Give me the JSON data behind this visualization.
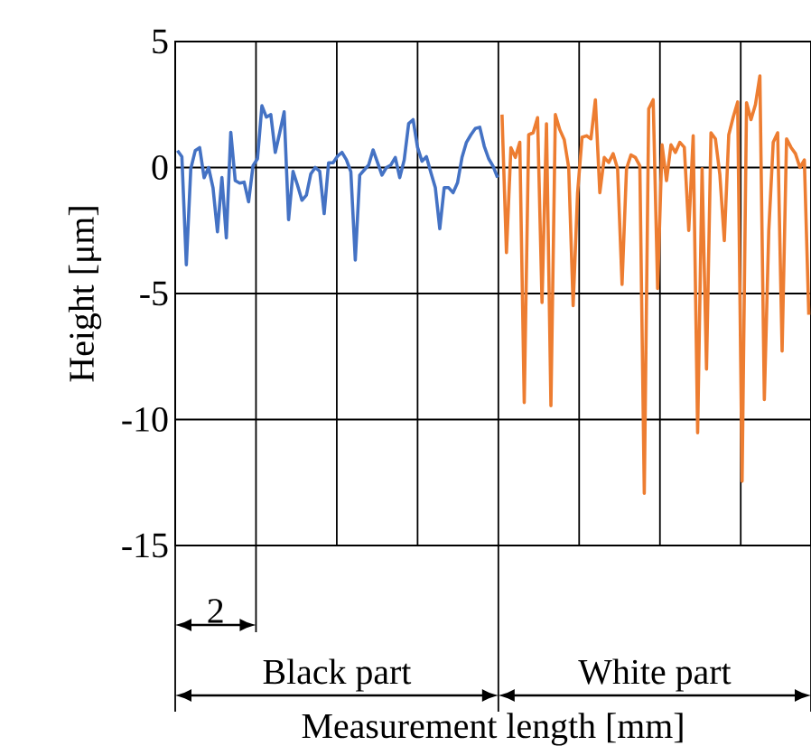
{
  "chart_data": {
    "type": "line",
    "xlabel": "Measurement length [mm]",
    "ylabel": "Height [μm]",
    "annotations": [
      "2",
      "Black part",
      "White part"
    ],
    "categories": [
      null,
      null,
      null,
      null,
      null,
      null,
      null,
      null,
      null,
      null,
      null,
      null,
      null,
      null,
      null,
      null,
      null,
      null,
      null,
      null,
      null,
      null,
      null,
      null,
      null,
      null,
      null,
      null,
      null,
      null,
      null,
      null,
      null,
      null,
      null,
      null,
      null,
      null,
      null,
      null,
      null,
      null,
      null,
      null,
      null,
      null,
      null,
      null,
      null,
      null,
      null,
      null,
      null,
      null,
      null,
      null,
      null,
      null,
      null,
      null,
      null,
      null,
      null,
      null,
      null,
      null,
      null,
      null,
      null,
      null,
      null,
      null,
      null,
      null,
      null,
      null,
      null,
      null,
      null,
      null,
      null,
      null,
      null,
      null,
      null,
      null,
      null,
      null,
      null,
      null,
      null,
      null,
      null,
      null,
      null,
      null,
      null,
      null,
      null,
      null,
      null,
      null,
      null,
      null,
      null,
      null,
      null,
      null,
      null,
      null,
      null,
      null,
      null,
      null,
      null,
      null,
      null,
      null,
      null,
      null,
      null,
      null,
      null,
      null,
      null,
      null,
      null,
      null,
      null,
      null,
      null,
      null,
      null,
      null,
      null,
      null,
      null,
      null,
      null,
      null,
      null,
      null,
      null
    ],
    "ylim": [
      -15,
      5
    ],
    "yticks": [
      -15,
      -10,
      -5,
      0,
      5
    ],
    "tick_labels": "y",
    "grid": true,
    "marker": "none",
    "line_style": "solid",
    "series": [
      {
        "color": "#4472c4",
        "values": [
          0.67,
          0.43,
          -3.86,
          -0.05,
          0.67,
          0.79,
          -0.4,
          0.0,
          -0.8,
          -2.55,
          -0.4,
          -2.79,
          1.4,
          -0.52,
          -0.62,
          -0.58,
          -1.36,
          0.07,
          0.35,
          2.45,
          2.0,
          2.1,
          0.6,
          1.38,
          2.21,
          -2.07,
          -0.15,
          -0.7,
          -1.3,
          -1.1,
          -0.25,
          0.0,
          -0.15,
          -1.83,
          0.19,
          0.19,
          0.45,
          0.6,
          0.31,
          -0.17,
          -3.67,
          -0.3,
          -0.1,
          0.1,
          0.7,
          0.2,
          -0.3,
          0.0,
          0.1,
          0.4,
          -0.4,
          0.3,
          1.74,
          1.9,
          0.8,
          0.25,
          0.43,
          -0.2,
          -0.8,
          -2.43,
          -0.8,
          -0.8,
          -1.0,
          -0.6,
          0.4,
          1.0,
          1.3,
          1.55,
          1.6,
          0.85,
          0.35,
          0.05,
          -0.4,
          null,
          null,
          null,
          null,
          null,
          null,
          null,
          null,
          null,
          null,
          null,
          null,
          null,
          null,
          null,
          null,
          null,
          null,
          null,
          null,
          null,
          null,
          null,
          null,
          null,
          null,
          null,
          null,
          null,
          null,
          null,
          null,
          null,
          null,
          null,
          null,
          null,
          null,
          null,
          null,
          null,
          null,
          null,
          null,
          null,
          null,
          null,
          null,
          null,
          null,
          null,
          null,
          null,
          null,
          null,
          null,
          null,
          null,
          null,
          null,
          null,
          null,
          null,
          null,
          null,
          null,
          null,
          null,
          null,
          null
        ]
      },
      {
        "color": "#ed7d31",
        "values": [
          null,
          null,
          null,
          null,
          null,
          null,
          null,
          null,
          null,
          null,
          null,
          null,
          null,
          null,
          null,
          null,
          null,
          null,
          null,
          null,
          null,
          null,
          null,
          null,
          null,
          null,
          null,
          null,
          null,
          null,
          null,
          null,
          null,
          null,
          null,
          null,
          null,
          null,
          null,
          null,
          null,
          null,
          null,
          null,
          null,
          null,
          null,
          null,
          null,
          null,
          null,
          null,
          null,
          null,
          null,
          null,
          null,
          null,
          null,
          null,
          null,
          null,
          null,
          null,
          null,
          null,
          null,
          null,
          null,
          null,
          null,
          null,
          null,
          2.1,
          -3.38,
          0.79,
          0.4,
          1.0,
          -9.33,
          1.3,
          1.38,
          1.98,
          -5.36,
          1.74,
          -9.45,
          2.1,
          1.5,
          1.1,
          0.0,
          -5.48,
          -1.0,
          1.2,
          1.26,
          1.14,
          2.69,
          -1.0,
          0.4,
          0.2,
          0.55,
          -0.05,
          -4.64,
          -0.05,
          0.5,
          0.4,
          0.07,
          -12.93,
          2.33,
          2.69,
          -4.8,
          0.9,
          -0.52,
          0.9,
          0.6,
          1.0,
          0.8,
          -2.5,
          1.26,
          -10.53,
          -0.05,
          -8.0,
          1.38,
          1.14,
          -0.29,
          -2.9,
          1.3,
          2.0,
          2.6,
          -12.45,
          2.57,
          1.9,
          2.5,
          3.64,
          -9.21,
          -2.5,
          1.0,
          1.38,
          -7.28,
          1.14,
          0.8,
          0.55,
          0.0,
          0.3,
          -5.84
        ]
      }
    ]
  }
}
